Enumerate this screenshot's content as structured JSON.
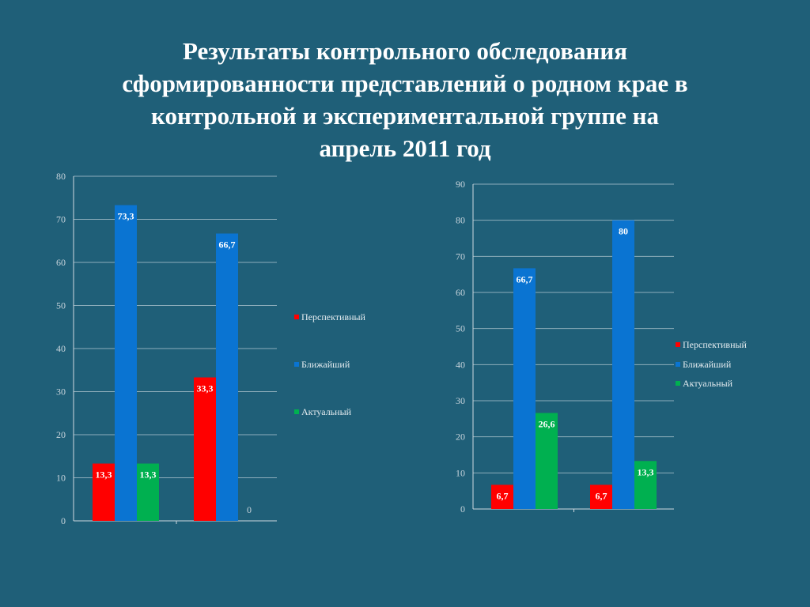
{
  "page": {
    "background": "#1f5f78",
    "title_lines": [
      "Результаты контрольного обследования",
      "сформированности представлений о родном крае в",
      "контрольной и экспериментальной группе на",
      "апрель  2011 год"
    ]
  },
  "colors": {
    "Перспективный": "#ff0000",
    "Ближайший": "#0a74d2",
    "Актуальный": "#00b050",
    "gridline": "#e8eef2",
    "axis": "#cfd9df"
  },
  "chart_data": [
    {
      "type": "bar",
      "title": "",
      "xlabel": "",
      "ylabel": "",
      "categories": [
        "",
        ""
      ],
      "ylim": [
        0,
        80
      ],
      "ytick_step": 10,
      "grid": true,
      "legend_position": "right",
      "series": [
        {
          "name": "Перспективный",
          "values": [
            13.3,
            33.3
          ],
          "labels": [
            "13,3",
            "33,3"
          ]
        },
        {
          "name": "Ближайший",
          "values": [
            73.3,
            66.7
          ],
          "labels": [
            "73,3",
            "66,7"
          ]
        },
        {
          "name": "Актуальный",
          "values": [
            13.3,
            0
          ],
          "labels": [
            "13,3",
            "0"
          ]
        }
      ]
    },
    {
      "type": "bar",
      "title": "",
      "xlabel": "",
      "ylabel": "",
      "categories": [
        "",
        ""
      ],
      "ylim": [
        0,
        90
      ],
      "ytick_step": 10,
      "grid": true,
      "legend_position": "right",
      "series": [
        {
          "name": "Перспективный",
          "values": [
            6.7,
            6.7
          ],
          "labels": [
            "6,7",
            "6,7"
          ]
        },
        {
          "name": "Ближайший",
          "values": [
            66.7,
            80
          ],
          "labels": [
            "66,7",
            "80"
          ]
        },
        {
          "name": "Актуальный",
          "values": [
            26.6,
            13.3
          ],
          "labels": [
            "26,6",
            "13,3"
          ]
        }
      ]
    }
  ]
}
